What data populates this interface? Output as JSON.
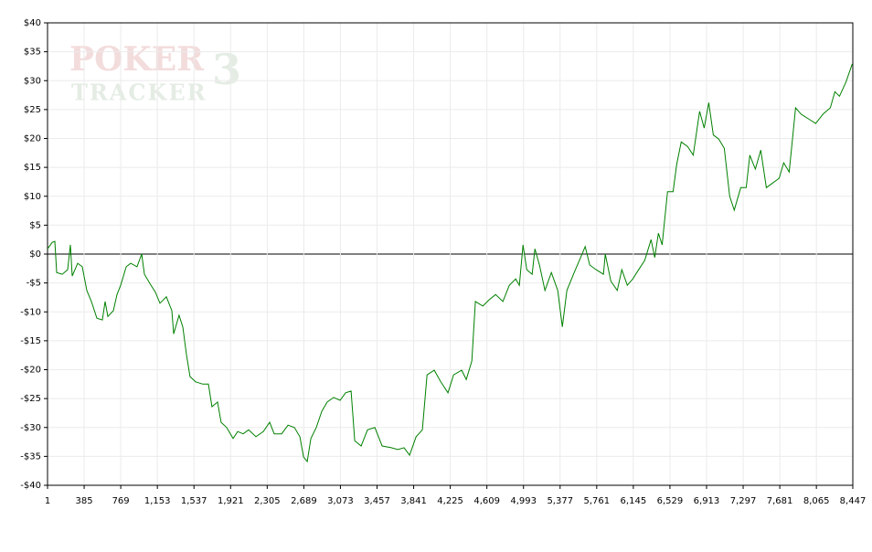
{
  "chart_data": {
    "type": "line",
    "watermark": {
      "line1": "POKER",
      "mark": "3",
      "line2": "TRACKER"
    },
    "x": [
      1,
      49,
      78,
      97,
      155,
      212,
      241,
      260,
      317,
      365,
      413,
      461,
      519,
      576,
      605,
      634,
      691,
      730,
      768,
      826,
      873,
      940,
      988,
      1017,
      1075,
      1132,
      1180,
      1247,
      1305,
      1324,
      1381,
      1420,
      1458,
      1496,
      1554,
      1630,
      1688,
      1726,
      1784,
      1822,
      1880,
      1947,
      1995,
      2053,
      2110,
      2187,
      2264,
      2331,
      2379,
      2456,
      2523,
      2590,
      2648,
      2686,
      2725,
      2763,
      2820,
      2878,
      2935,
      3002,
      3070,
      3127,
      3185,
      3223,
      3290,
      3357,
      3434,
      3511,
      3607,
      3674,
      3741,
      3798,
      3866,
      3933,
      3981,
      4057,
      4125,
      4201,
      4259,
      4345,
      4393,
      4451,
      4489,
      4566,
      4633,
      4700,
      4777,
      4844,
      4911,
      4950,
      4988,
      5027,
      5084,
      5113,
      5161,
      5218,
      5285,
      5352,
      5400,
      5448,
      5525,
      5592,
      5640,
      5688,
      5755,
      5832,
      5851,
      5909,
      5976,
      6024,
      6082,
      6139,
      6197,
      6264,
      6331,
      6370,
      6408,
      6447,
      6504,
      6562,
      6600,
      6648,
      6715,
      6773,
      6840,
      6888,
      6936,
      6984,
      7041,
      7099,
      7156,
      7204,
      7272,
      7329,
      7367,
      7425,
      7482,
      7540,
      7607,
      7674,
      7722,
      7780,
      7847,
      7904,
      7981,
      8058,
      8134,
      8211,
      8259,
      8307,
      8374,
      8441
    ],
    "series": [
      {
        "color": "#008000",
        "values": [
          0.9,
          2,
          2.2,
          -3.2,
          -3.5,
          -2.7,
          1.6,
          -3.8,
          -1.6,
          -2.2,
          -6.3,
          -8.2,
          -11.1,
          -11.4,
          -8.2,
          -10.8,
          -9.8,
          -7,
          -5.4,
          -2.2,
          -1.6,
          -2.2,
          0,
          -3.5,
          -5.1,
          -6.6,
          -8.5,
          -7.4,
          -9.8,
          -13.8,
          -10.6,
          -12.6,
          -17.4,
          -21.2,
          -22.1,
          -22.5,
          -22.5,
          -26.4,
          -25.6,
          -29.1,
          -30,
          -31.9,
          -30.7,
          -31.1,
          -30.4,
          -31.6,
          -30.7,
          -29.1,
          -31.1,
          -31.1,
          -29.6,
          -30,
          -31.6,
          -35.1,
          -35.9,
          -31.9,
          -30,
          -27.2,
          -25.6,
          -24.8,
          -25.3,
          -24,
          -23.7,
          -32.3,
          -33.2,
          -30.4,
          -30,
          -33.2,
          -33.5,
          -33.8,
          -33.5,
          -34.8,
          -31.6,
          -30.4,
          -20.9,
          -20.1,
          -22.1,
          -24,
          -20.9,
          -20.1,
          -21.7,
          -18.5,
          -8.2,
          -9,
          -7.9,
          -7,
          -8.2,
          -5.4,
          -4.3,
          -5.4,
          1.6,
          -2.7,
          -3.5,
          0.9,
          -1.9,
          -6.3,
          -3.2,
          -6.3,
          -12.6,
          -6.3,
          -3.2,
          -0.6,
          1.3,
          -1.9,
          -2.7,
          -3.5,
          0,
          -4.7,
          -6.3,
          -2.7,
          -5.4,
          -4.3,
          -2.8,
          -1.1,
          2.5,
          -0.6,
          3.6,
          1.6,
          10.8,
          10.8,
          15.5,
          19.4,
          18.6,
          17.1,
          24.7,
          21.8,
          26.2,
          20.6,
          19.9,
          18.3,
          10,
          7.6,
          11.5,
          11.5,
          17.1,
          14.7,
          18,
          11.5,
          12.3,
          13.1,
          15.8,
          14.2,
          25.3,
          24.2,
          23.4,
          22.6,
          24.2,
          25.3,
          28.1,
          27.3,
          29.7,
          32.9
        ]
      }
    ],
    "xlim": [
      1,
      8447
    ],
    "xticks": [
      1,
      385,
      769,
      {
        "value": 1153,
        "label": "1,153"
      },
      {
        "value": 1537,
        "label": "1,537"
      },
      {
        "value": 1921,
        "label": "1,921"
      },
      {
        "value": 2305,
        "label": "2,305"
      },
      {
        "value": 2689,
        "label": "2,689"
      },
      {
        "value": 3073,
        "label": "3,073"
      },
      {
        "value": 3457,
        "label": "3,457"
      },
      {
        "value": 3841,
        "label": "3,841"
      },
      {
        "value": 4225,
        "label": "4,225"
      },
      {
        "value": 4609,
        "label": "4,609"
      },
      {
        "value": 4993,
        "label": "4,993"
      },
      {
        "value": 5377,
        "label": "5,377"
      },
      {
        "value": 5761,
        "label": "5,761"
      },
      {
        "value": 6145,
        "label": "6,145"
      },
      {
        "value": 6529,
        "label": "6,529"
      },
      {
        "value": 6913,
        "label": "6,913"
      },
      {
        "value": 7297,
        "label": "7,297"
      },
      {
        "value": 7681,
        "label": "7,681"
      },
      {
        "value": 8065,
        "label": "8,065"
      },
      {
        "value": 8447,
        "label": "8,447"
      }
    ],
    "ylim": [
      -40,
      40
    ],
    "yticks": [
      {
        "value": -40,
        "label": "-$40"
      },
      {
        "value": -35,
        "label": "-$35"
      },
      {
        "value": -30,
        "label": "-$30"
      },
      {
        "value": -25,
        "label": "-$25"
      },
      {
        "value": -20,
        "label": "-$20"
      },
      {
        "value": -15,
        "label": "-$15"
      },
      {
        "value": -10,
        "label": "-$10"
      },
      {
        "value": -5,
        "label": "-$5"
      },
      {
        "value": 0,
        "label": "$0"
      },
      {
        "value": 5,
        "label": "$5"
      },
      {
        "value": 10,
        "label": "$10"
      },
      {
        "value": 15,
        "label": "$15"
      },
      {
        "value": 20,
        "label": "$20"
      },
      {
        "value": 25,
        "label": "$25"
      },
      {
        "value": 30,
        "label": "$30"
      },
      {
        "value": 35,
        "label": "$35"
      },
      {
        "value": 40,
        "label": "$40"
      }
    ],
    "grid": true,
    "grid_color": "#ebebeb",
    "zero_line_color": "#000000"
  }
}
